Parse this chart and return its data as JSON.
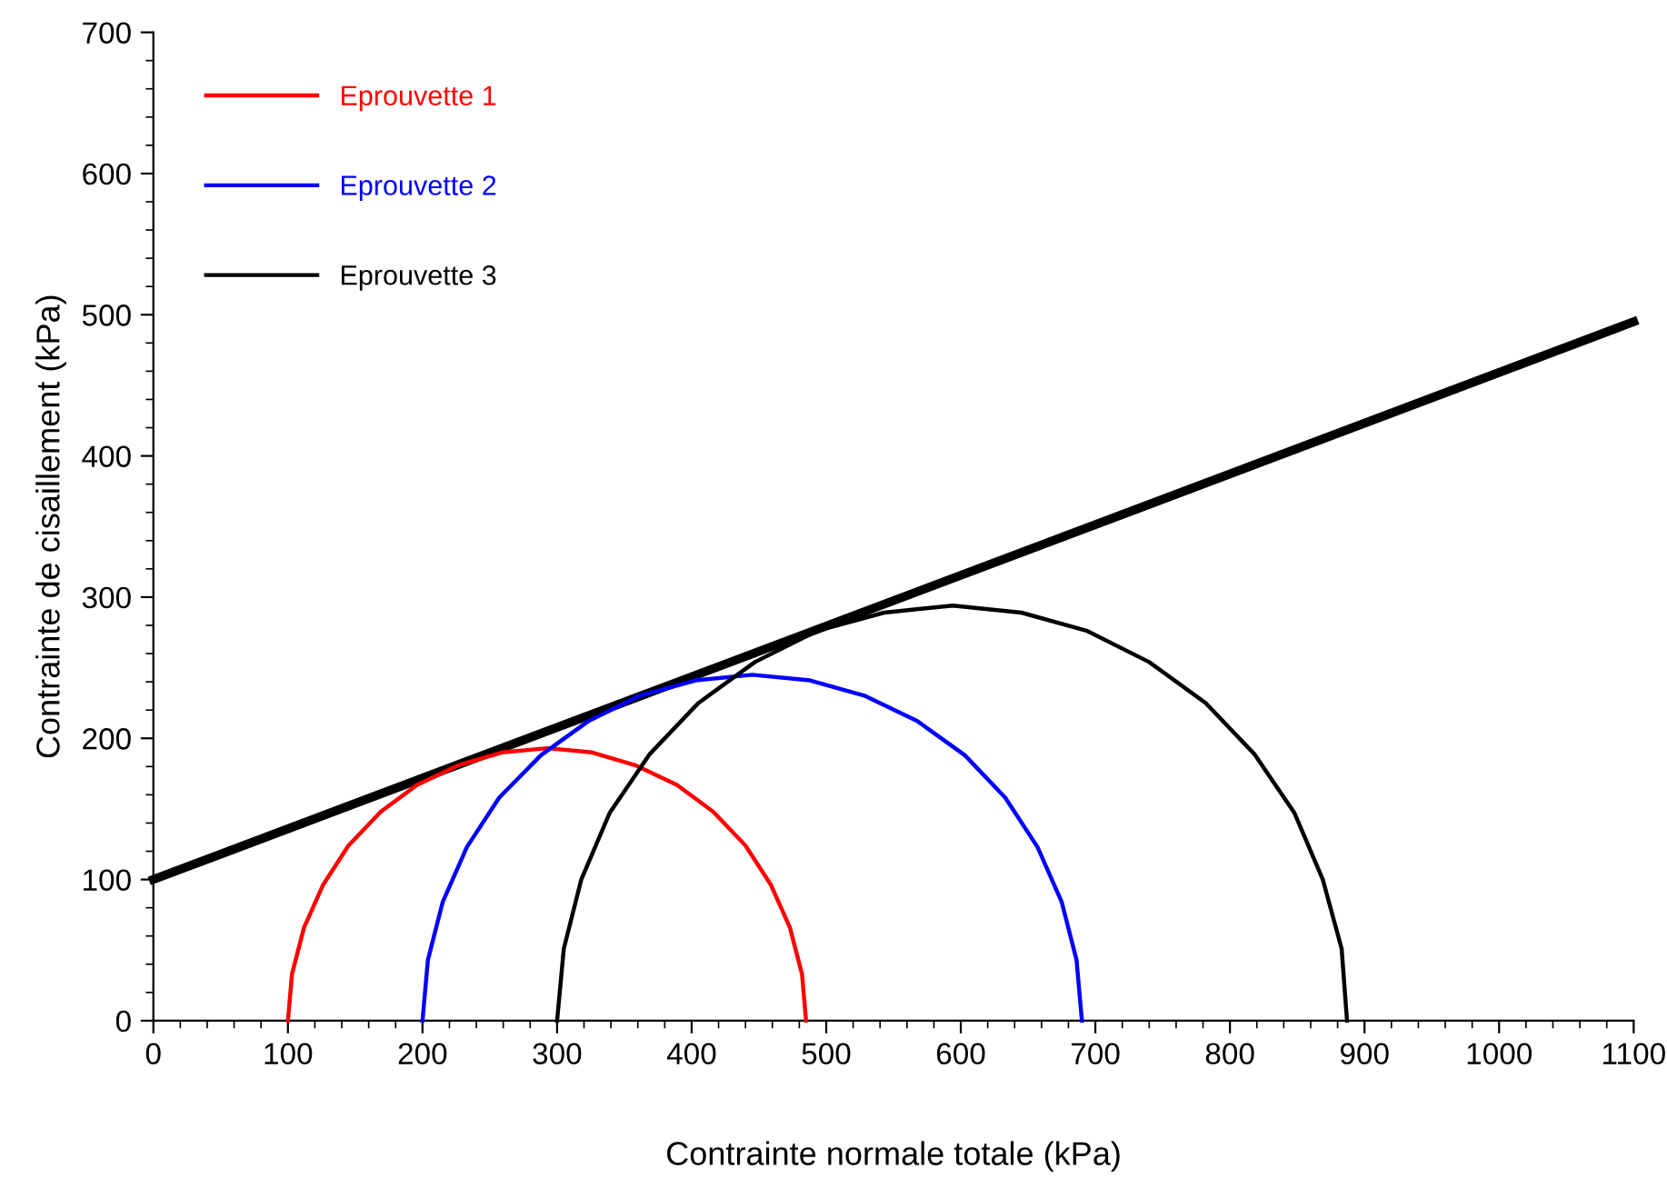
{
  "chart_data": {
    "type": "line",
    "xlabel": "Contrainte normale totale (kPa)",
    "ylabel": "Contrainte de cisaillement (kPa)",
    "xlim": [
      0,
      1100
    ],
    "xticks": [
      0,
      100,
      200,
      300,
      400,
      500,
      600,
      700,
      800,
      900,
      1000,
      1100
    ],
    "ylim": [
      0,
      700
    ],
    "yticks": [
      0,
      100,
      200,
      300,
      400,
      500,
      600,
      700
    ],
    "grid": false,
    "legend": "top left",
    "marker": "none",
    "line_style": "solid",
    "series": [
      {
        "name": "Eprouvette 1",
        "color": "#ff0000",
        "x": [
          100,
          103,
          112,
          126,
          145,
          169,
          196,
          227,
          259,
          293,
          326,
          358,
          389,
          416,
          440,
          459,
          473,
          482,
          485
        ],
        "values": [
          0,
          33,
          66,
          96,
          124,
          148,
          167,
          181,
          190,
          193,
          190,
          181,
          167,
          148,
          124,
          96,
          66,
          33,
          0
        ]
      },
      {
        "name": "Eprouvette 2",
        "color": "#0000ff",
        "x": [
          200,
          204,
          215,
          233,
          257,
          288,
          323,
          361,
          403,
          445,
          488,
          529,
          568,
          603,
          633,
          657,
          675,
          686,
          690
        ],
        "values": [
          0,
          43,
          84,
          123,
          158,
          188,
          212,
          230,
          241,
          245,
          241,
          230,
          212,
          188,
          158,
          123,
          84,
          43,
          0
        ]
      },
      {
        "name": "Eprouvette 3",
        "color": "#000000",
        "x": [
          300,
          305,
          318,
          339,
          369,
          405,
          447,
          493,
          543,
          594,
          645,
          694,
          740,
          782,
          818,
          848,
          869,
          883,
          887
        ],
        "values": [
          0,
          51,
          100,
          147,
          189,
          225,
          254,
          276,
          289,
          294,
          289,
          276,
          254,
          225,
          189,
          147,
          100,
          51,
          0
        ]
      },
      {
        "color": "#000000",
        "x": [
          0,
          1100
        ],
        "values": [
          100,
          495
        ]
      }
    ]
  }
}
